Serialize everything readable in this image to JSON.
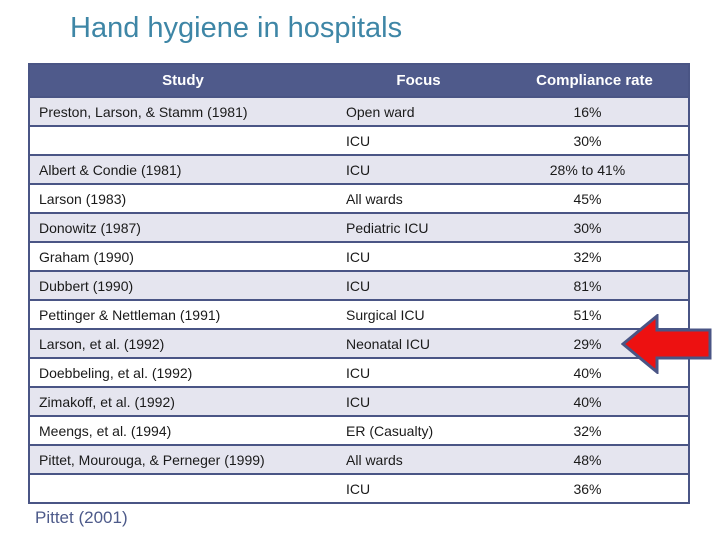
{
  "slide": {
    "title": "Hand hygiene in hospitals",
    "citation": "Pittet (2001)"
  },
  "colors": {
    "title": "#3E86A6",
    "header_bg": "#4F5A8B",
    "border": "#4A5585",
    "row_band": "#E5E5EF",
    "row_plain": "#FFFFFF",
    "citation": "#4D5A8A",
    "arrow_fill": "#ED1111",
    "arrow_outline": "#4A5585"
  },
  "table": {
    "columns": [
      "Study",
      "Focus",
      "Compliance rate"
    ],
    "rows": [
      {
        "study": "Preston, Larson, & Stamm (1981)",
        "focus": "Open ward",
        "rate": "16%"
      },
      {
        "study": "",
        "focus": "ICU",
        "rate": "30%"
      },
      {
        "study": "Albert & Condie (1981)",
        "focus": "ICU",
        "rate": "28% to 41%"
      },
      {
        "study": "Larson (1983)",
        "focus": "All wards",
        "rate": "45%"
      },
      {
        "study": "Donowitz (1987)",
        "focus": "Pediatric ICU",
        "rate": "30%"
      },
      {
        "study": "Graham (1990)",
        "focus": "ICU",
        "rate": "32%"
      },
      {
        "study": "Dubbert (1990)",
        "focus": "ICU",
        "rate": "81%"
      },
      {
        "study": "Pettinger & Nettleman (1991)",
        "focus": "Surgical ICU",
        "rate": "51%"
      },
      {
        "study": "Larson, et al. (1992)",
        "focus": "Neonatal ICU",
        "rate": "29%"
      },
      {
        "study": "Doebbeling, et al. (1992)",
        "focus": "ICU",
        "rate": "40%"
      },
      {
        "study": "Zimakoff, et al. (1992)",
        "focus": "ICU",
        "rate": "40%"
      },
      {
        "study": "Meengs, et al. (1994)",
        "focus": "ER (Casualty)",
        "rate": "32%"
      },
      {
        "study": "Pittet, Mourouga, & Perneger (1999)",
        "focus": "All wards",
        "rate": "48%"
      },
      {
        "study": "",
        "focus": "ICU",
        "rate": "36%"
      }
    ]
  },
  "annotations": {
    "arrow": {
      "shape": "block-arrow",
      "direction": "left",
      "points_to_row": "Larson, et al. (1992)",
      "points_to_value": "29%"
    }
  }
}
